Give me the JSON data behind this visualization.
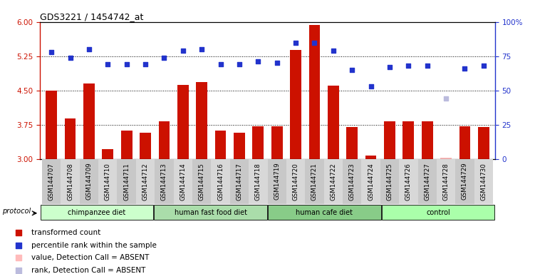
{
  "title": "GDS3221 / 1454742_at",
  "samples": [
    "GSM144707",
    "GSM144708",
    "GSM144709",
    "GSM144710",
    "GSM144711",
    "GSM144712",
    "GSM144713",
    "GSM144714",
    "GSM144715",
    "GSM144716",
    "GSM144717",
    "GSM144718",
    "GSM144719",
    "GSM144720",
    "GSM144721",
    "GSM144722",
    "GSM144723",
    "GSM144724",
    "GSM144725",
    "GSM144726",
    "GSM144727",
    "GSM144728",
    "GSM144729",
    "GSM144730"
  ],
  "bar_values": [
    4.5,
    3.88,
    4.65,
    3.22,
    3.62,
    3.58,
    3.82,
    4.62,
    4.68,
    3.62,
    3.58,
    3.72,
    3.72,
    5.38,
    5.94,
    4.6,
    3.7,
    3.08,
    3.82,
    3.82,
    3.82,
    3.02,
    3.72,
    3.7
  ],
  "rank_values": [
    78,
    74,
    80,
    69,
    69,
    69,
    74,
    79,
    80,
    69,
    69,
    71,
    70,
    85,
    85,
    79,
    65,
    53,
    67,
    68,
    68,
    44,
    66,
    68
  ],
  "absent_bar_idx": 21,
  "absent_rank_idx": 21,
  "groups": [
    {
      "label": "chimpanzee diet",
      "start": 0,
      "end": 6
    },
    {
      "label": "human fast food diet",
      "start": 6,
      "end": 12
    },
    {
      "label": "human cafe diet",
      "start": 12,
      "end": 18
    },
    {
      "label": "control",
      "start": 18,
      "end": 24
    }
  ],
  "group_colors": [
    "#ccffcc",
    "#aaddaa",
    "#88cc88",
    "#aaffaa"
  ],
  "ylim_left": [
    3.0,
    6.0
  ],
  "ylim_right": [
    0,
    100
  ],
  "yticks_left": [
    3.0,
    3.75,
    4.5,
    5.25,
    6.0
  ],
  "yticks_right": [
    0,
    25,
    50,
    75,
    100
  ],
  "bar_color": "#cc1100",
  "rank_color": "#2233cc",
  "absent_bar_color": "#ffbbbb",
  "absent_rank_color": "#bbbbdd",
  "hgrid_vals": [
    3.75,
    4.5,
    5.25
  ],
  "legend_items": [
    {
      "color": "#cc1100",
      "label": "transformed count"
    },
    {
      "color": "#2233cc",
      "label": "percentile rank within the sample"
    },
    {
      "color": "#ffbbbb",
      "label": "value, Detection Call = ABSENT"
    },
    {
      "color": "#bbbbdd",
      "label": "rank, Detection Call = ABSENT"
    }
  ]
}
